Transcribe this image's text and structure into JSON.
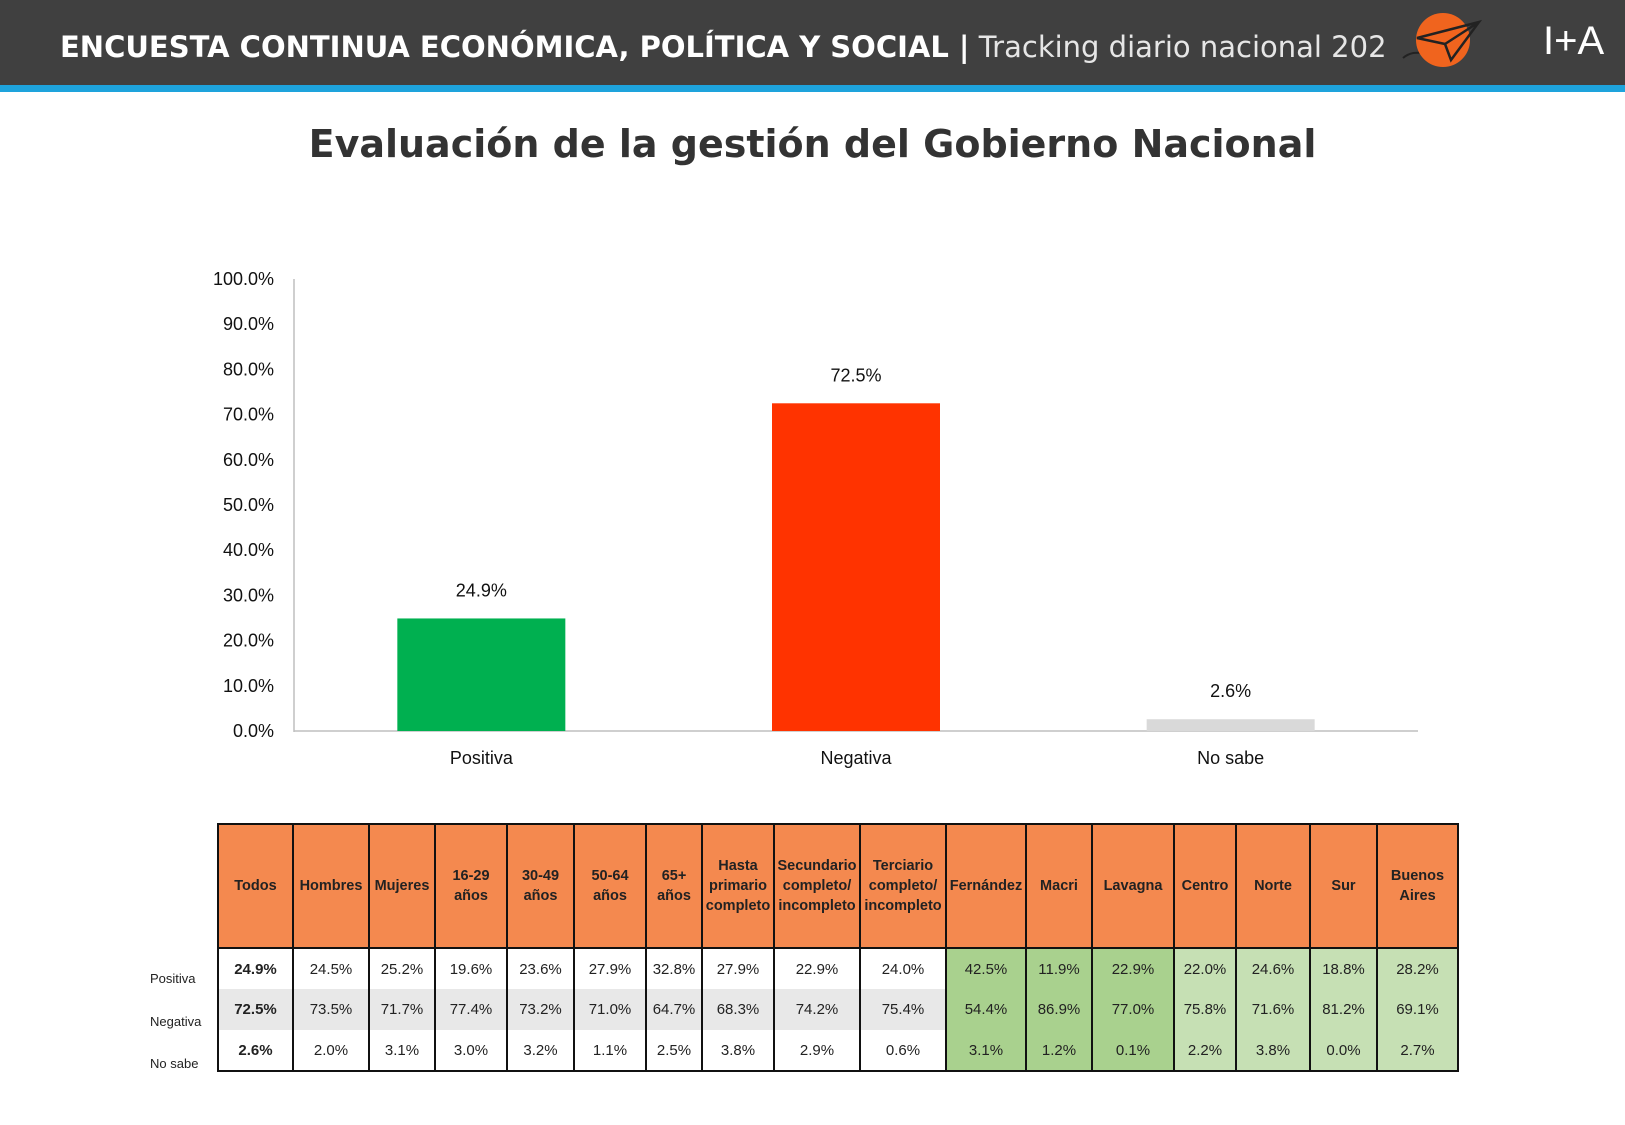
{
  "header": {
    "title_bold": "ENCUESTA CONTINUA ECONÓMICA, POLÍTICA Y SOCIAL |",
    "title_light": "Tracking diario nacional 202",
    "logo_text": "I+A",
    "colors": {
      "bar": "#404040",
      "stripe": "#1ea3dc",
      "logo_sun": "#f0641e"
    }
  },
  "chart_data": {
    "type": "bar",
    "title": "Evaluación de la gestión del Gobierno Nacional",
    "categories": [
      "Positiva",
      "Negativa",
      "No sabe"
    ],
    "values": [
      24.9,
      72.5,
      2.6
    ],
    "value_labels": [
      "24.9%",
      "72.5%",
      "2.6%"
    ],
    "colors": [
      "#00b050",
      "#ff3300",
      "#d9d9d9"
    ],
    "ylim": [
      0,
      100
    ],
    "yticks": [
      "0.0%",
      "10.0%",
      "20.0%",
      "30.0%",
      "40.0%",
      "50.0%",
      "60.0%",
      "70.0%",
      "80.0%",
      "90.0%",
      "100.0%"
    ],
    "grid": false,
    "xlabel": "",
    "ylabel": ""
  },
  "table": {
    "columns": [
      "Todos",
      "Hombres",
      "Mujeres",
      "16-29 años",
      "30-49 años",
      "50-64 años",
      "65+ años",
      "Hasta primario completo",
      "Secundario completo/ incompleto",
      "Terciario completo/ incompleto",
      "Fernández",
      "Macri",
      "Lavagna",
      "Centro",
      "Norte",
      "Sur",
      "Buenos Aires"
    ],
    "rows": [
      {
        "label": "Positiva",
        "values": [
          "24.9%",
          "24.5%",
          "25.2%",
          "19.6%",
          "23.6%",
          "27.9%",
          "32.8%",
          "27.9%",
          "22.9%",
          "24.0%",
          "42.5%",
          "11.9%",
          "22.9%",
          "22.0%",
          "24.6%",
          "18.8%",
          "28.2%"
        ]
      },
      {
        "label": "Negativa",
        "values": [
          "72.5%",
          "73.5%",
          "71.7%",
          "77.4%",
          "73.2%",
          "71.0%",
          "64.7%",
          "68.3%",
          "74.2%",
          "75.4%",
          "54.4%",
          "86.9%",
          "77.0%",
          "75.8%",
          "71.6%",
          "81.2%",
          "69.1%"
        ]
      },
      {
        "label": "No sabe",
        "values": [
          "2.6%",
          "2.0%",
          "3.1%",
          "3.0%",
          "3.2%",
          "1.1%",
          "2.5%",
          "3.8%",
          "2.9%",
          "0.6%",
          "3.1%",
          "1.2%",
          "0.1%",
          "2.2%",
          "3.8%",
          "0.0%",
          "2.7%"
        ]
      }
    ],
    "colors": {
      "header": "#f4894f",
      "candidates": "#a9d18e",
      "regions": "#c6e0b4",
      "stripe": "#e8e8e8"
    }
  }
}
